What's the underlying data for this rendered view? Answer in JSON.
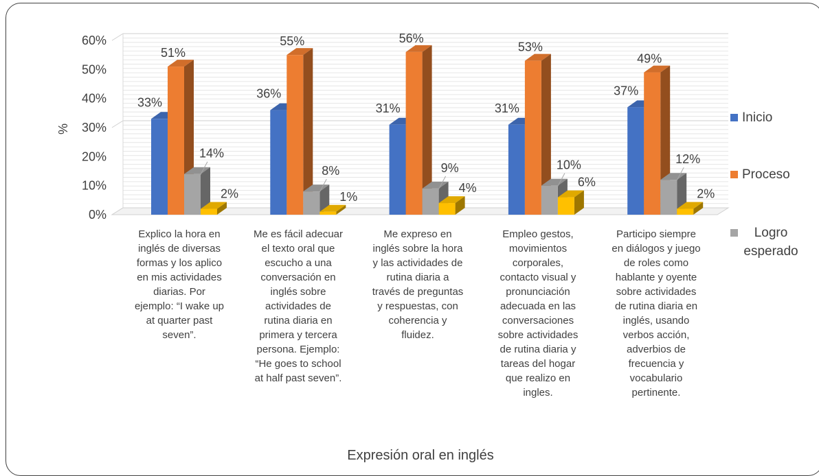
{
  "chart_data": {
    "type": "bar",
    "title": "",
    "xlabel": "Expresión oral en inglés",
    "ylabel": "%",
    "ylim": [
      0,
      60
    ],
    "yticks": [
      "0%",
      "10%",
      "20%",
      "30%",
      "40%",
      "50%",
      "60%"
    ],
    "grid": true,
    "legend_position": "right",
    "categories": [
      "Explico  la hora en inglés de diversas formas y los aplico en mis actividades diarias. Por ejemplo: “I wake up at quarter past seven”.",
      "Me es fácil adecuar el texto oral que escucho a una conversación en inglés sobre actividades de rutina diaria en primera y tercera persona. Ejemplo: “He goes to school at half past seven”.",
      "Me expreso en inglés sobre la hora y las actividades de rutina diaria a través de preguntas y respuestas, con coherencia y fluidez.",
      "Empleo gestos, movimientos corporales, contacto visual y pronunciación adecuada en las conversaciones sobre actividades de rutina diaria y tareas del hogar que realizo en ingles.",
      "Participo siempre en diálogos y juego de roles como hablante y oyente sobre actividades de rutina diaria en inglés, usando verbos acción, adverbios de frecuencia y vocabulario pertinente."
    ],
    "category_lines": [
      [
        "Explico  la hora en",
        "inglés de diversas",
        "formas y los aplico",
        "en mis actividades",
        "diarias. Por",
        "ejemplo: “I wake up",
        "at quarter past",
        "seven”."
      ],
      [
        "Me es fácil adecuar",
        "el texto oral que",
        "escucho a una",
        "conversación en",
        "inglés sobre",
        "actividades de",
        "rutina diaria en",
        "primera y tercera",
        "persona. Ejemplo:",
        "“He goes to school",
        "at half past seven”."
      ],
      [
        "Me expreso en",
        "inglés sobre la hora",
        "y las actividades de",
        "rutina diaria a",
        "través de preguntas",
        "y respuestas, con",
        "coherencia y",
        "fluidez."
      ],
      [
        "Empleo gestos,",
        "movimientos",
        "corporales,",
        "contacto visual y",
        "pronunciación",
        "adecuada en las",
        "conversaciones",
        "sobre actividades",
        "de rutina diaria y",
        "tareas del hogar",
        "que realizo en",
        "ingles."
      ],
      [
        "Participo siempre",
        "en diálogos y juego",
        "de roles como",
        "hablante y oyente",
        "sobre actividades",
        "de rutina diaria en",
        "inglés, usando",
        "verbos acción,",
        "adverbios de",
        "frecuencia y",
        "vocabulario",
        "pertinente."
      ]
    ],
    "series": [
      {
        "name": "Inicio",
        "color": "#4472C4",
        "values": [
          33,
          36,
          31,
          31,
          37
        ],
        "labels": [
          "33%",
          "36%",
          "31%",
          "31%",
          "37%"
        ]
      },
      {
        "name": "Proceso",
        "color": "#ED7D31",
        "values": [
          51,
          55,
          56,
          53,
          49
        ],
        "labels": [
          "51%",
          "55%",
          "56%",
          "53%",
          "49%"
        ]
      },
      {
        "name": "Logro esperado",
        "legend_lines": [
          "Logro",
          "esperado"
        ],
        "color": "#A5A5A5",
        "values": [
          14,
          8,
          9,
          10,
          12
        ],
        "labels": [
          "14%",
          "8%",
          "9%",
          "10%",
          "12%"
        ]
      },
      {
        "name": "",
        "color": "#FFC000",
        "values": [
          2,
          1,
          4,
          6,
          2
        ],
        "labels": [
          "2%",
          "1%",
          "4%",
          "6%",
          "2%"
        ]
      }
    ]
  }
}
